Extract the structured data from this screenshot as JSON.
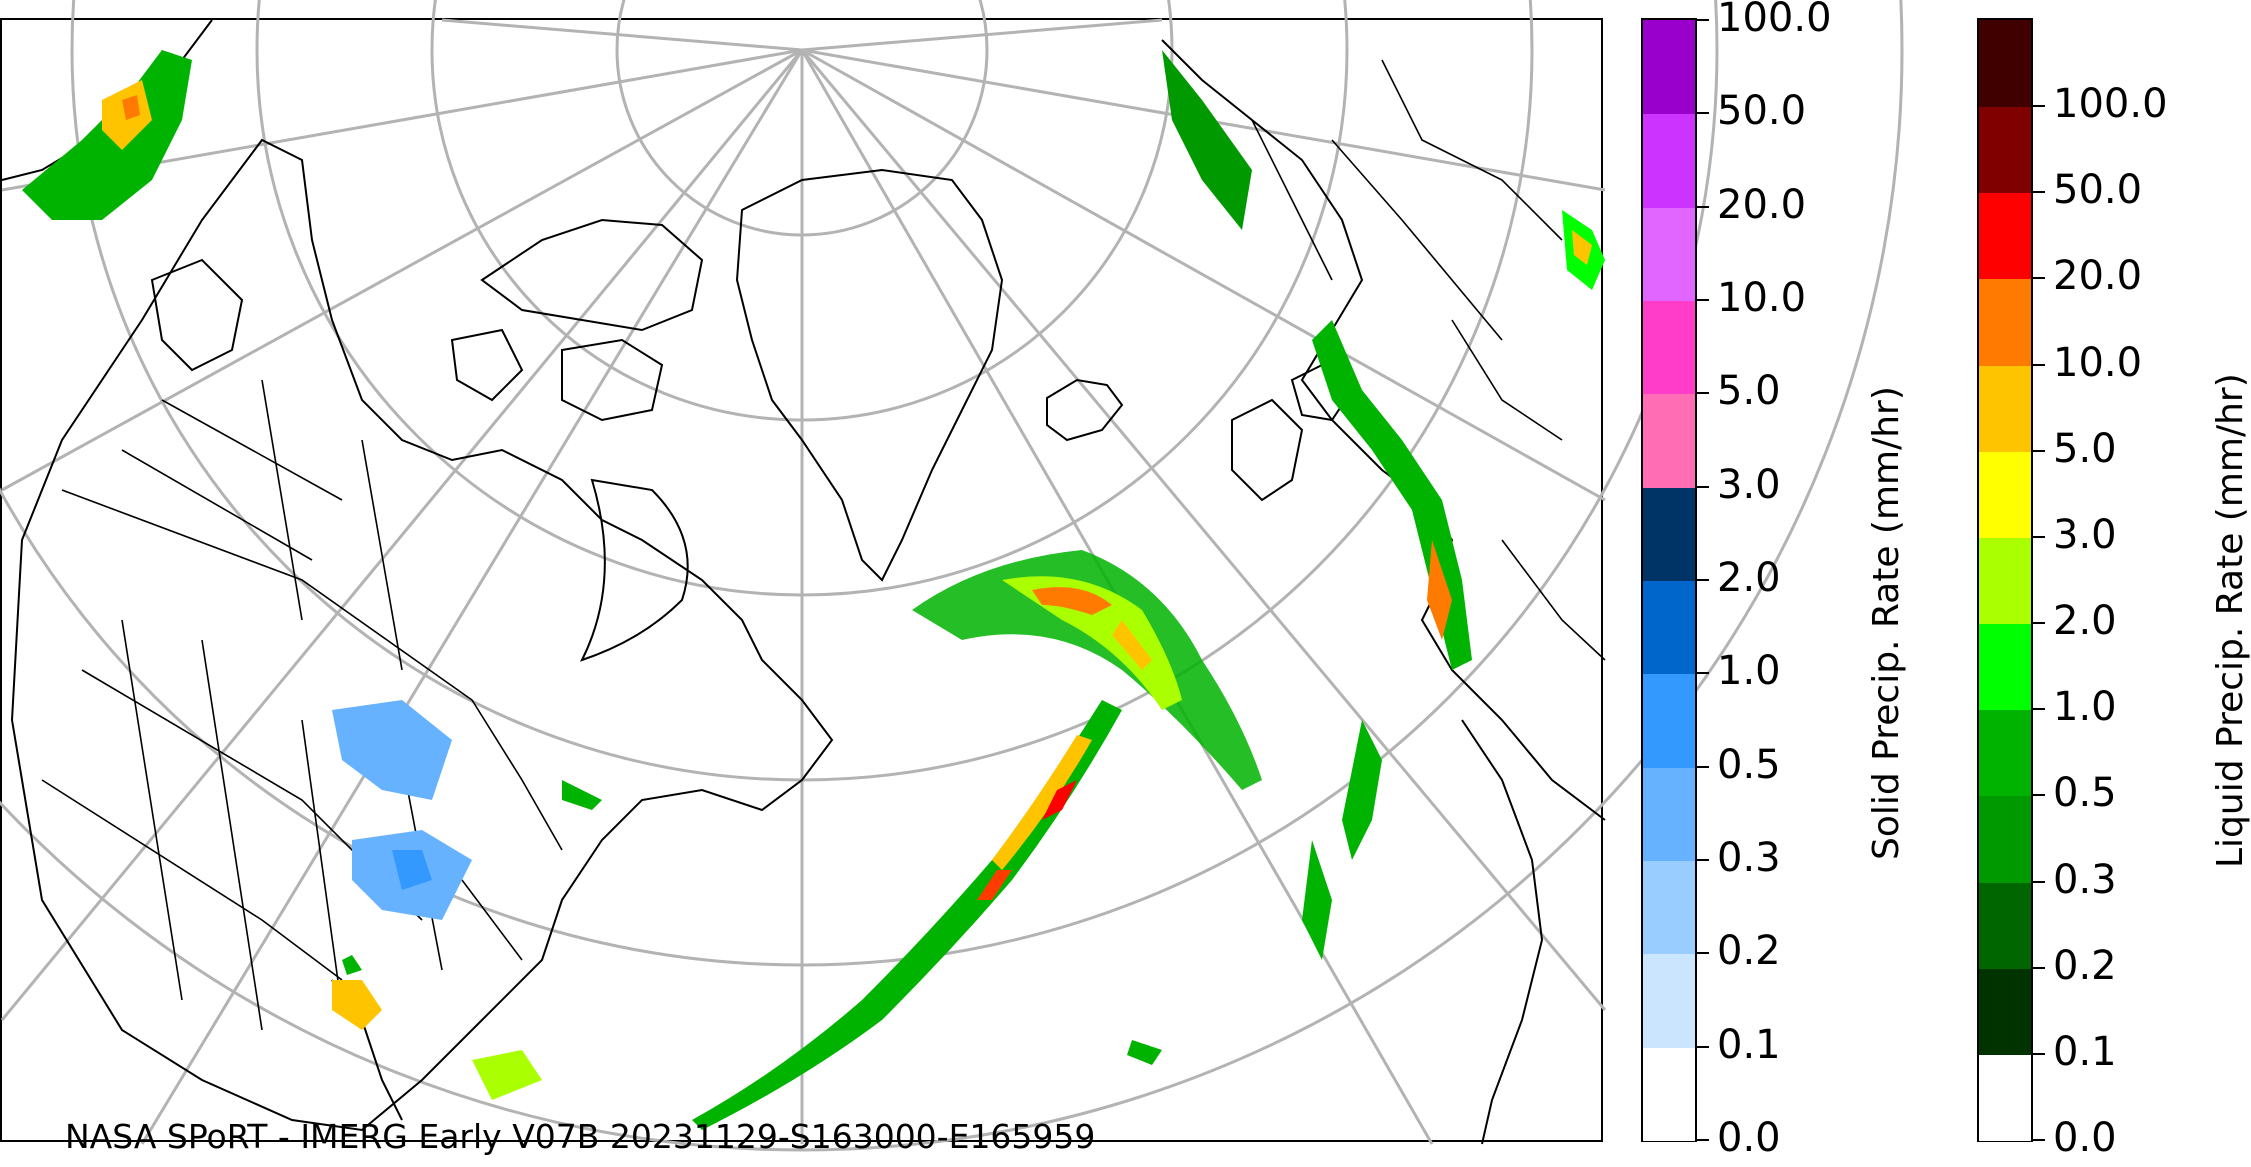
{
  "credit": "NASA SPoRT - IMERG Early V07B 20231129-S163000-E165959",
  "solid_colorbar": {
    "label": "Solid Precip. Rate (mm/hr)",
    "ticks": [
      "0.0",
      "0.1",
      "0.2",
      "0.3",
      "0.5",
      "1.0",
      "2.0",
      "3.0",
      "5.0",
      "10.0",
      "20.0",
      "50.0",
      "100.0"
    ],
    "colors": [
      "#ffffff",
      "#cce5ff",
      "#99ccff",
      "#66b2ff",
      "#3399ff",
      "#0066cc",
      "#003366",
      "#ff6eb4",
      "#ff3dc8",
      "#e066ff",
      "#cc33ff",
      "#9900cc"
    ]
  },
  "liquid_colorbar": {
    "label": "Liquid Precip. Rate (mm/hr)",
    "ticks": [
      "0.0",
      "0.1",
      "0.2",
      "0.3",
      "0.5",
      "1.0",
      "2.0",
      "3.0",
      "5.0",
      "10.0",
      "20.0",
      "50.0",
      "100.0"
    ],
    "colors": [
      "#ffffff",
      "#003300",
      "#006600",
      "#009900",
      "#00b300",
      "#00ff00",
      "#aaff00",
      "#ffff00",
      "#ffc400",
      "#ff7a00",
      "#ff0000",
      "#800000",
      "#400000"
    ]
  },
  "map": {
    "projection": "polar stereographic (north pole)",
    "gridlines": true,
    "gridline_color": "#b3b3b3",
    "features": [
      "coastlines",
      "country borders",
      "US state borders",
      "Canadian province borders"
    ]
  }
}
